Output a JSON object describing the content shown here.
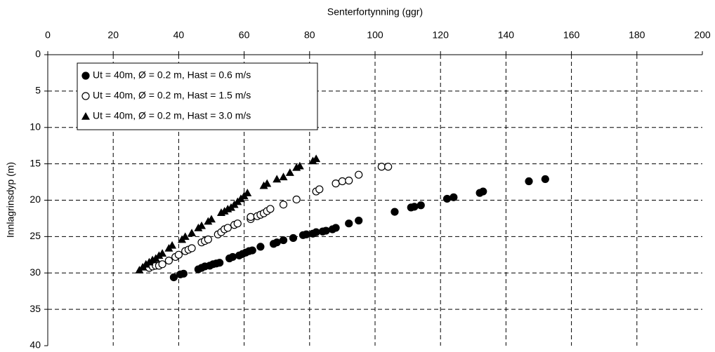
{
  "chart_data": {
    "type": "scatter",
    "xlabel": "Senterfortynning (ggr)",
    "ylabel": "Innlagrinsdyp (m)",
    "xlim": [
      0,
      200
    ],
    "xticks": [
      0,
      20,
      40,
      60,
      80,
      100,
      120,
      140,
      160,
      180,
      200
    ],
    "ylim": [
      0,
      40
    ],
    "yticks": [
      0,
      5,
      10,
      15,
      20,
      25,
      30,
      35,
      40
    ],
    "y_inverted": true,
    "x_axis_top": true,
    "grid": true,
    "legend": "upper left",
    "series": [
      {
        "name": "Ut = 40m, Ø = 0.2 m, Hast = 0.6 m/s",
        "marker": "filled-circle",
        "color": "#000000",
        "x": [
          38.5,
          40.5,
          41.5,
          46,
          47,
          48,
          49.5,
          50.5,
          51.5,
          52.5,
          55.5,
          56.5,
          58.5,
          59.5,
          60.5,
          61.5,
          62.5,
          65,
          69,
          70,
          72,
          75,
          78,
          79,
          81,
          82,
          84,
          85,
          87,
          88,
          92,
          95,
          106,
          111,
          112,
          114,
          122,
          124,
          132,
          133,
          147,
          152
        ],
        "values": [
          30.6,
          30.2,
          30.1,
          29.5,
          29.3,
          29.1,
          29.0,
          28.8,
          28.7,
          28.6,
          28.0,
          27.8,
          27.6,
          27.4,
          27.2,
          27.0,
          26.9,
          26.4,
          26.0,
          25.8,
          25.5,
          25.2,
          24.8,
          24.7,
          24.6,
          24.4,
          24.3,
          24.2,
          24.0,
          23.8,
          23.2,
          22.8,
          21.6,
          21.0,
          20.9,
          20.7,
          19.8,
          19.6,
          19.0,
          18.8,
          17.4,
          17.1
        ]
      },
      {
        "name": "Ut = 40m, Ø = 0.2 m, Hast = 1.5 m/s",
        "marker": "open-circle",
        "color": "#000000",
        "x": [
          31,
          32,
          33,
          34,
          35,
          37,
          39,
          40,
          42,
          43,
          44,
          47,
          48,
          49,
          52,
          53,
          54,
          55,
          57,
          58,
          62,
          62,
          64,
          65,
          66,
          67,
          68,
          72,
          76,
          82,
          83,
          88,
          90,
          92,
          95,
          102,
          104
        ],
        "values": [
          29.3,
          29.1,
          29.0,
          29.0,
          28.8,
          28.3,
          27.8,
          27.5,
          27.0,
          26.8,
          26.6,
          25.8,
          25.6,
          25.4,
          24.7,
          24.4,
          24.0,
          23.8,
          23.4,
          23.2,
          22.6,
          22.3,
          22.2,
          22.0,
          21.8,
          21.5,
          21.2,
          20.6,
          19.9,
          18.8,
          18.5,
          17.7,
          17.4,
          17.3,
          16.5,
          15.4,
          15.4
        ]
      },
      {
        "name": "Ut = 40m, Ø = 0.2 m, Hast = 3.0 m/s",
        "marker": "triangle",
        "color": "#000000",
        "x": [
          28,
          29,
          30,
          31,
          32,
          33,
          34,
          35,
          37,
          38,
          41,
          42,
          44,
          46,
          47,
          49,
          50,
          53,
          54,
          55,
          56,
          57,
          58,
          59,
          60,
          61,
          66,
          67,
          70,
          72,
          74,
          76,
          77,
          81,
          82
        ],
        "values": [
          29.6,
          29.2,
          28.8,
          28.5,
          28.2,
          28.0,
          27.6,
          27.3,
          26.6,
          26.2,
          25.4,
          25.0,
          24.5,
          23.8,
          23.5,
          22.9,
          22.6,
          21.7,
          21.5,
          21.2,
          21.0,
          20.6,
          20.2,
          19.8,
          19.4,
          19.0,
          18.0,
          17.7,
          17.1,
          16.8,
          16.2,
          15.5,
          15.3,
          14.6,
          14.3
        ]
      }
    ]
  }
}
